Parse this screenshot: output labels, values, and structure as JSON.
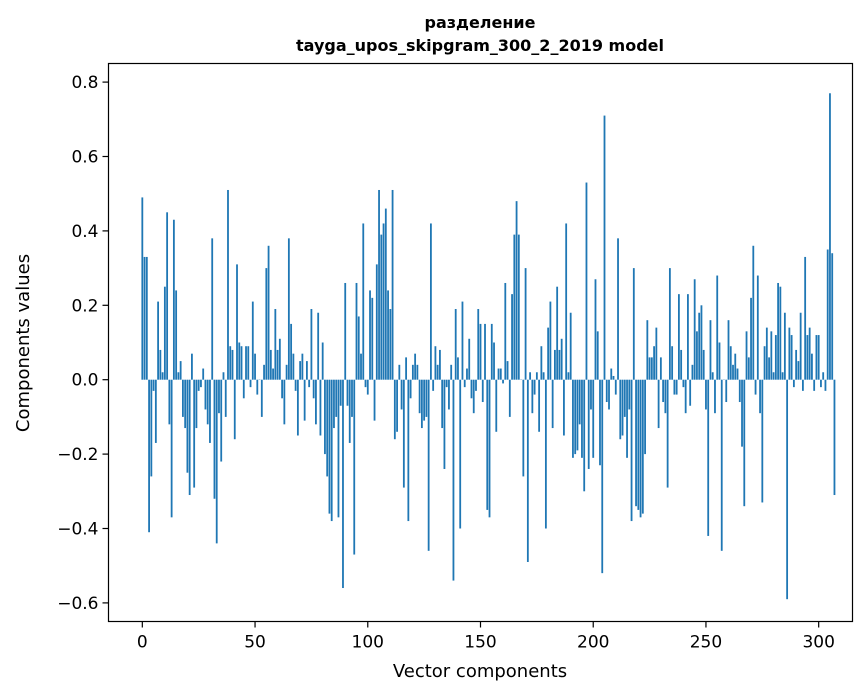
{
  "chart_data": {
    "type": "bar",
    "title": "разделение",
    "subtitle": "tayga_upos_skipgram_300_2_2019 model",
    "xlabel": "Vector components",
    "ylabel": "Components values",
    "xlim": [
      -15,
      315
    ],
    "ylim": [
      -0.65,
      0.85
    ],
    "xticks": [
      0,
      50,
      100,
      150,
      200,
      250,
      300
    ],
    "xtick_labels": [
      "0",
      "50",
      "100",
      "150",
      "200",
      "250",
      "300"
    ],
    "yticks": [
      0.8,
      0.6,
      0.4,
      0.2,
      0.0,
      -0.2,
      -0.4,
      -0.6
    ],
    "ytick_labels": [
      "0.8",
      "0.6",
      "0.4",
      "0.2",
      "0.0",
      "−0.2",
      "−0.4",
      "−0.6"
    ],
    "bar_color": "#1f77b4",
    "grid": false,
    "values": [
      0.49,
      0.33,
      0.33,
      -0.41,
      -0.26,
      -0.03,
      -0.17,
      0.21,
      0.08,
      0.02,
      0.25,
      0.45,
      -0.12,
      -0.37,
      0.43,
      0.24,
      0.02,
      0.05,
      -0.1,
      -0.13,
      -0.25,
      -0.31,
      0.07,
      -0.29,
      -0.13,
      -0.03,
      -0.02,
      0.03,
      -0.08,
      -0.12,
      -0.17,
      0.38,
      -0.32,
      -0.44,
      -0.09,
      -0.22,
      0.02,
      -0.1,
      0.51,
      0.09,
      0.08,
      -0.16,
      0.31,
      0.1,
      0.09,
      -0.05,
      0.09,
      0.09,
      -0.02,
      0.21,
      0.07,
      -0.04,
      0.0,
      -0.1,
      0.04,
      0.3,
      0.36,
      0.08,
      0.03,
      0.19,
      0.08,
      0.11,
      -0.05,
      -0.12,
      0.04,
      0.38,
      0.15,
      0.07,
      -0.03,
      -0.15,
      0.05,
      0.07,
      -0.11,
      0.05,
      -0.02,
      0.19,
      -0.05,
      -0.12,
      0.18,
      -0.15,
      0.1,
      -0.2,
      -0.26,
      -0.36,
      -0.38,
      -0.13,
      -0.1,
      -0.37,
      -0.07,
      -0.56,
      0.26,
      -0.07,
      -0.17,
      -0.1,
      -0.47,
      0.26,
      0.17,
      0.07,
      0.42,
      -0.02,
      -0.04,
      0.24,
      0.22,
      -0.11,
      0.31,
      0.51,
      0.39,
      0.42,
      0.46,
      0.24,
      0.19,
      0.51,
      -0.16,
      -0.14,
      0.04,
      -0.08,
      -0.29,
      0.06,
      -0.38,
      -0.05,
      0.04,
      0.07,
      0.04,
      -0.09,
      -0.13,
      -0.11,
      -0.1,
      -0.46,
      0.42,
      -0.03,
      0.09,
      0.04,
      0.08,
      -0.13,
      -0.24,
      -0.02,
      -0.08,
      0.04,
      -0.54,
      0.19,
      0.06,
      -0.4,
      0.21,
      -0.02,
      0.03,
      0.11,
      -0.05,
      -0.09,
      -0.03,
      0.19,
      0.15,
      -0.06,
      0.15,
      -0.35,
      -0.37,
      0.15,
      0.1,
      -0.14,
      0.03,
      0.03,
      -0.01,
      0.26,
      0.05,
      -0.1,
      0.23,
      0.39,
      0.48,
      0.39,
      0.0,
      -0.26,
      0.3,
      -0.49,
      0.02,
      -0.09,
      -0.04,
      0.02,
      -0.14,
      0.09,
      0.02,
      -0.4,
      0.14,
      0.21,
      -0.13,
      0.08,
      0.25,
      0.08,
      0.11,
      -0.15,
      0.42,
      0.02,
      0.18,
      -0.21,
      -0.2,
      -0.19,
      -0.12,
      -0.21,
      -0.3,
      0.53,
      -0.24,
      -0.08,
      -0.21,
      0.27,
      0.13,
      -0.23,
      -0.52,
      0.71,
      -0.06,
      -0.08,
      0.03,
      0.01,
      -0.04,
      0.38,
      -0.16,
      -0.15,
      -0.1,
      -0.21,
      -0.08,
      -0.38,
      0.3,
      -0.34,
      -0.35,
      -0.37,
      -0.36,
      -0.2,
      0.16,
      0.06,
      0.06,
      0.09,
      0.14,
      -0.13,
      0.06,
      -0.06,
      -0.09,
      -0.29,
      0.3,
      0.09,
      -0.04,
      -0.04,
      0.23,
      0.08,
      -0.02,
      -0.09,
      0.23,
      -0.07,
      0.04,
      0.27,
      0.13,
      0.18,
      0.2,
      0.08,
      -0.08,
      -0.42,
      0.16,
      0.02,
      -0.09,
      0.28,
      0.1,
      -0.46,
      0.0,
      -0.06,
      0.16,
      0.09,
      0.04,
      0.07,
      0.03,
      -0.06,
      -0.18,
      -0.34,
      0.13,
      0.06,
      0.22,
      0.36,
      -0.04,
      0.28,
      -0.09,
      -0.33,
      0.09,
      0.14,
      0.06,
      0.13,
      0.02,
      0.12,
      0.26,
      0.25,
      0.02,
      0.18,
      -0.59,
      0.14,
      0.12,
      -0.02,
      0.08,
      0.05,
      0.18,
      -0.03,
      0.33,
      0.12,
      0.14,
      0.07,
      -0.03,
      0.12,
      0.12,
      -0.02,
      0.02,
      -0.03,
      0.35,
      0.77,
      0.34,
      -0.31
    ]
  }
}
